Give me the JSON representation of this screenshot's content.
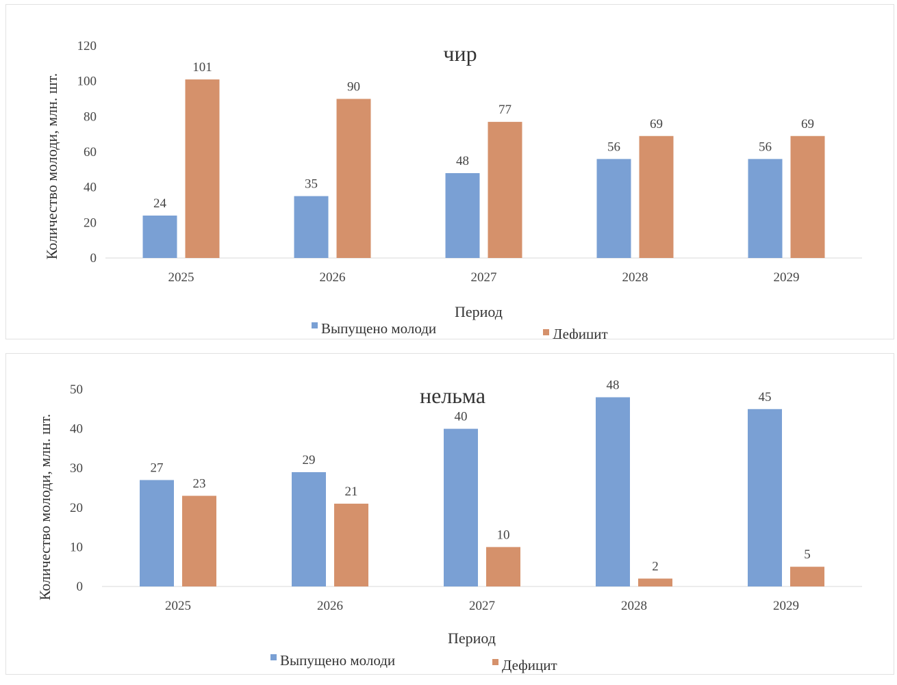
{
  "colors": {
    "released": "#7aa0d4",
    "deficit": "#d5916b"
  },
  "chart_data": [
    {
      "type": "bar",
      "title": "чир",
      "xlabel": "Период",
      "ylabel": "Количество молоди, млн. шт.",
      "categories": [
        "2025",
        "2026",
        "2027",
        "2028",
        "2029"
      ],
      "ylim": [
        0,
        120
      ],
      "yticks": [
        "0",
        "20",
        "40",
        "60",
        "80",
        "100",
        "120"
      ],
      "grid": false,
      "legend_position": "bottom",
      "series": [
        {
          "name": "Выпущено молоди",
          "values": [
            24,
            35,
            48,
            56,
            56
          ]
        },
        {
          "name": "Дефицит",
          "values": [
            101,
            90,
            77,
            69,
            69
          ]
        }
      ]
    },
    {
      "type": "bar",
      "title": "нельма",
      "xlabel": "Период",
      "ylabel": "Количество молоди, млн. шт.",
      "categories": [
        "2025",
        "2026",
        "2027",
        "2028",
        "2029"
      ],
      "ylim": [
        0,
        50
      ],
      "yticks": [
        "0",
        "10",
        "20",
        "30",
        "40",
        "50"
      ],
      "grid": false,
      "legend_position": "bottom",
      "series": [
        {
          "name": "Выпущено молоди",
          "values": [
            27,
            29,
            40,
            48,
            45
          ]
        },
        {
          "name": "Дефицит",
          "values": [
            23,
            21,
            10,
            2,
            5
          ]
        }
      ]
    }
  ]
}
